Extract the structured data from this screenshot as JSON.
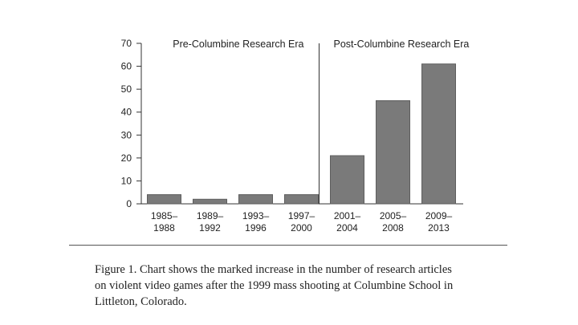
{
  "colors": {
    "bar": "#7a7a7a",
    "bar_stroke": "#5e5e5e",
    "axis": "#333333"
  },
  "chart_data": {
    "type": "bar",
    "categories": [
      [
        "1985–",
        "1988"
      ],
      [
        "1989–",
        "1992"
      ],
      [
        "1993–",
        "1996"
      ],
      [
        "1997–",
        "2000"
      ],
      [
        "2001–",
        "2004"
      ],
      [
        "2005–",
        "2008"
      ],
      [
        "2009–",
        "2013"
      ]
    ],
    "values": [
      4,
      2,
      4,
      4,
      21,
      45,
      61
    ],
    "ylim": [
      0,
      70
    ],
    "yticks": [
      0,
      10,
      20,
      30,
      40,
      50,
      60,
      70
    ],
    "grid": false,
    "annotations": {
      "pre_era": "Pre-Columbine Research Era",
      "post_era": "Post-Columbine Research Era",
      "divider_between": [
        "1997–2000",
        "2001–2004"
      ]
    }
  },
  "caption": {
    "lines": [
      "Figure 1. Chart shows the marked increase in the number of research articles",
      "on violent video games after the 1999 mass shooting at Columbine School in",
      "Littleton, Colorado."
    ]
  }
}
